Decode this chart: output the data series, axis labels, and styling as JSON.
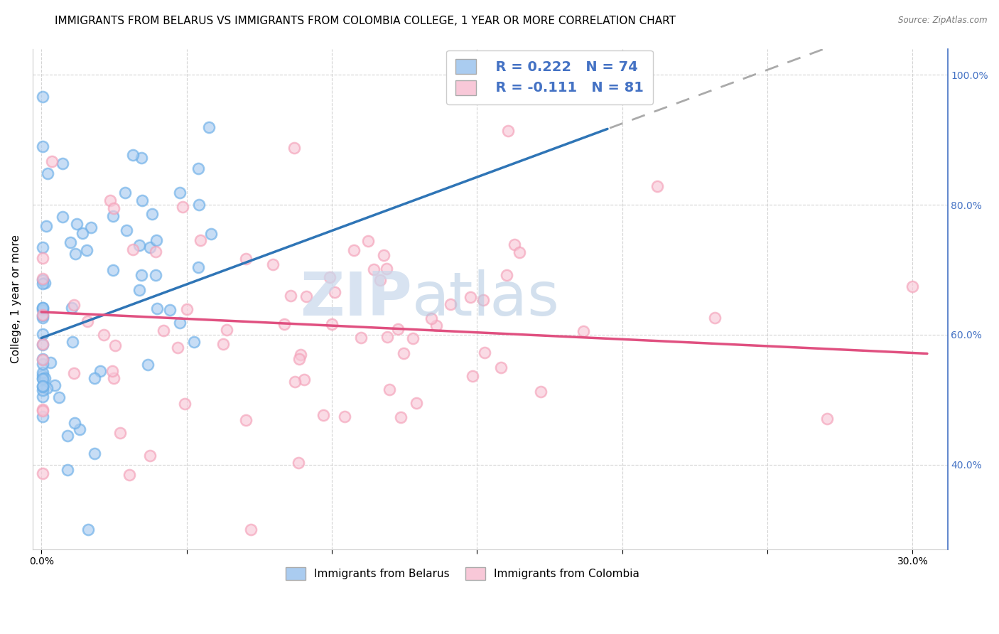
{
  "title": "IMMIGRANTS FROM BELARUS VS IMMIGRANTS FROM COLOMBIA COLLEGE, 1 YEAR OR MORE CORRELATION CHART",
  "source": "Source: ZipAtlas.com",
  "ylabel": "College, 1 year or more",
  "xlim_min": -0.003,
  "xlim_max": 0.312,
  "ylim_min": 0.27,
  "ylim_max": 1.04,
  "xtick_vals": [
    0.0,
    0.05,
    0.1,
    0.15,
    0.2,
    0.25,
    0.3
  ],
  "xticklabels": [
    "0.0%",
    "",
    "",
    "",
    "",
    "",
    "30.0%"
  ],
  "ytick_right_vals": [
    0.4,
    0.6,
    0.8,
    1.0
  ],
  "ytick_right_labels": [
    "40.0%",
    "60.0%",
    "80.0%",
    "100.0%"
  ],
  "blue_edge": "#6aaee8",
  "pink_edge": "#f4a0b8",
  "trend_blue": "#2f75b6",
  "trend_pink": "#e05080",
  "trend_gray_dash": "#aaaaaa",
  "right_axis_color": "#4472c4",
  "watermark_zip": "ZIP",
  "watermark_atlas": "atlas",
  "legend_text_color": "#4472c4",
  "title_fontsize": 11,
  "tick_fontsize": 10,
  "ylabel_fontsize": 11,
  "legend_fontsize": 13,
  "scatter_size": 120,
  "scatter_alpha": 0.65,
  "scatter_lw": 1.8,
  "trend_lw": 2.5,
  "blue_trend_solid_end": 0.195,
  "blue_n": 74,
  "colombia_n": 81,
  "blue_R": 0.222,
  "colombia_R": -0.111,
  "blue_trend_y0": 0.595,
  "blue_trend_slope": 1.65,
  "pink_trend_y0": 0.635,
  "pink_trend_slope": -0.21
}
